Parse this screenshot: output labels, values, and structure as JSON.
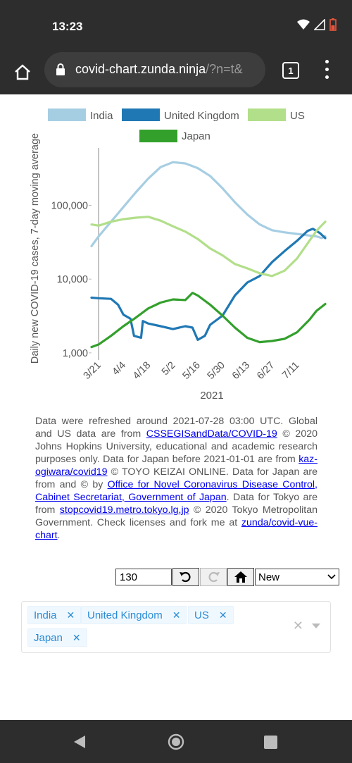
{
  "status": {
    "time": "13:23"
  },
  "browser": {
    "url_main": "covid-chart.zunda.ninja",
    "url_rest": "/?n=t&",
    "tab_count": "1"
  },
  "chart_data": {
    "type": "line",
    "ylabel": "Daily new COVID-19 cases, 7-day moving average",
    "xlabel": "2021",
    "yscale": "log",
    "ylim": [
      800,
      600000
    ],
    "xlim": [
      "2021-03-17",
      "2021-07-27"
    ],
    "y_ticks": [
      1000,
      10000,
      100000
    ],
    "y_tick_labels": [
      "1,000",
      "10,000",
      "100,000"
    ],
    "x_ticks": [
      "2021-03-21",
      "2021-04-04",
      "2021-04-18",
      "2021-05-02",
      "2021-05-16",
      "2021-05-30",
      "2021-06-13",
      "2021-06-27",
      "2021-07-11"
    ],
    "x_tick_labels": [
      "3/21",
      "4/4",
      "4/18",
      "5/2",
      "5/16",
      "5/30",
      "6/13",
      "6/27",
      "7/11"
    ],
    "legend_position": "top",
    "series": [
      {
        "name": "India",
        "color": "#a6cee3",
        "x": [
          "2021-03-17",
          "2021-03-21",
          "2021-03-28",
          "2021-04-04",
          "2021-04-11",
          "2021-04-18",
          "2021-04-25",
          "2021-05-02",
          "2021-05-09",
          "2021-05-16",
          "2021-05-23",
          "2021-05-30",
          "2021-06-06",
          "2021-06-13",
          "2021-06-20",
          "2021-06-27",
          "2021-07-04",
          "2021-07-11",
          "2021-07-18",
          "2021-07-22",
          "2021-07-25",
          "2021-07-27"
        ],
        "y": [
          28000,
          38000,
          60000,
          95000,
          150000,
          230000,
          330000,
          385000,
          370000,
          320000,
          250000,
          170000,
          110000,
          75000,
          55000,
          46000,
          43000,
          41000,
          39000,
          38000,
          36000,
          38000
        ]
      },
      {
        "name": "United Kingdom",
        "color": "#1f78b4",
        "x": [
          "2021-03-17",
          "2021-03-21",
          "2021-03-28",
          "2021-04-01",
          "2021-04-04",
          "2021-04-08",
          "2021-04-10",
          "2021-04-14",
          "2021-04-15",
          "2021-04-18",
          "2021-04-25",
          "2021-05-02",
          "2021-05-09",
          "2021-05-13",
          "2021-05-16",
          "2021-05-20",
          "2021-05-23",
          "2021-05-30",
          "2021-06-06",
          "2021-06-13",
          "2021-06-20",
          "2021-06-27",
          "2021-07-04",
          "2021-07-11",
          "2021-07-17",
          "2021-07-20",
          "2021-07-24",
          "2021-07-27"
        ],
        "y": [
          5600,
          5500,
          5400,
          4500,
          3300,
          2900,
          1700,
          1600,
          2700,
          2500,
          2300,
          2100,
          2300,
          2200,
          1500,
          1700,
          2400,
          3200,
          6000,
          9000,
          11000,
          17000,
          24000,
          33000,
          45000,
          48000,
          42000,
          36000
        ]
      },
      {
        "name": "US",
        "color": "#b2df8a",
        "x": [
          "2021-03-17",
          "2021-03-21",
          "2021-03-28",
          "2021-04-04",
          "2021-04-11",
          "2021-04-18",
          "2021-04-25",
          "2021-05-02",
          "2021-05-09",
          "2021-05-16",
          "2021-05-23",
          "2021-05-30",
          "2021-06-06",
          "2021-06-13",
          "2021-06-20",
          "2021-06-27",
          "2021-07-04",
          "2021-07-11",
          "2021-07-18",
          "2021-07-22",
          "2021-07-27"
        ],
        "y": [
          55000,
          53000,
          60000,
          65000,
          68000,
          70000,
          62000,
          52000,
          44000,
          35000,
          26000,
          21000,
          16000,
          14000,
          12000,
          11000,
          13000,
          19000,
          33000,
          45000,
          60000
        ]
      },
      {
        "name": "Japan",
        "color": "#33a02c",
        "x": [
          "2021-03-17",
          "2021-03-21",
          "2021-03-28",
          "2021-04-04",
          "2021-04-11",
          "2021-04-18",
          "2021-04-25",
          "2021-05-02",
          "2021-05-09",
          "2021-05-13",
          "2021-05-16",
          "2021-05-23",
          "2021-05-30",
          "2021-06-06",
          "2021-06-13",
          "2021-06-20",
          "2021-06-27",
          "2021-07-04",
          "2021-07-11",
          "2021-07-18",
          "2021-07-22",
          "2021-07-27"
        ],
        "y": [
          1200,
          1300,
          1700,
          2300,
          3000,
          4000,
          4800,
          5300,
          5200,
          6500,
          6000,
          4500,
          3200,
          2200,
          1600,
          1400,
          1450,
          1550,
          1900,
          2800,
          3700,
          4600
        ]
      }
    ]
  },
  "credits": {
    "t1": "Data were refreshed around 2021-07-28 03:00 UTC. Global and US data are from ",
    "l1": "CSSEGISandData/COVID-19",
    "t2": " © 2020 Johns Hopkins University, educational and academic research purposes only. Data for Japan before 2021-01-01 are from ",
    "l2": "kaz-ogiwara/covid19",
    "t3": " © TOYO KEIZAI ONLINE. Data for Japan are from and © by ",
    "l3": "Office for Novel Coronavirus Disease Control, Cabinet Secretariat, Government of Japan",
    "t4": ". Data for Tokyo are from ",
    "l4": "stopcovid19.metro.tokyo.lg.jp",
    "t5": " © 2020 Tokyo Metropolitan Government. Check licenses and fork me at ",
    "l5": "zunda/covid-vue-chart",
    "t6": "."
  },
  "controls": {
    "days_value": "130",
    "mode_value": "New"
  },
  "countries": [
    "India",
    "United Kingdom",
    "US",
    "Japan"
  ]
}
